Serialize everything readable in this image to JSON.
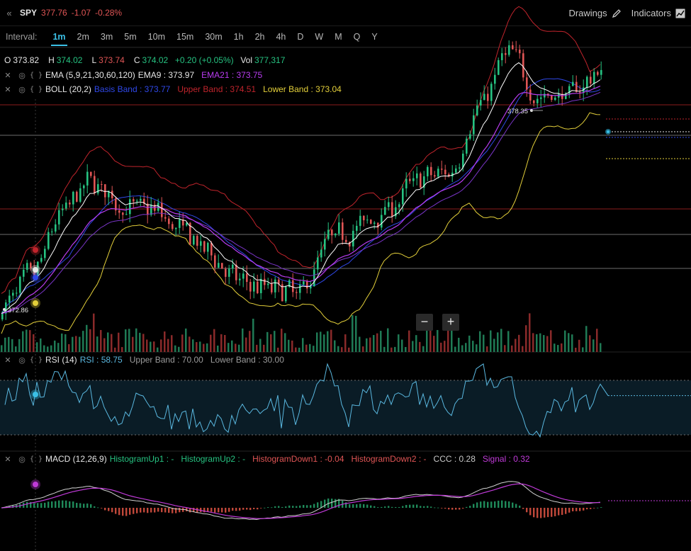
{
  "header": {
    "symbol": "SPY",
    "price": "377.76",
    "change": "-1.07",
    "change_pct": "-0.28%",
    "drawings_label": "Drawings",
    "indicators_label": "Indicators"
  },
  "intervals": {
    "label": "Interval:",
    "items": [
      "1m",
      "2m",
      "3m",
      "5m",
      "10m",
      "15m",
      "30m",
      "1h",
      "2h",
      "4h",
      "D",
      "W",
      "M",
      "Q",
      "Y"
    ],
    "active": "1m"
  },
  "ohlc": {
    "o_label": "O",
    "o": "373.82",
    "h_label": "H",
    "h": "374.02",
    "l_label": "L",
    "l": "373.74",
    "c_label": "C",
    "c": "374.02",
    "change": "+0.20 (+0.05%)",
    "vol_label": "Vol",
    "vol": "377,317"
  },
  "indicators": {
    "ema": {
      "name": "EMA (5,9,21,30,60,120)",
      "v1": "EMA9 : 373.97",
      "v2": "EMA21 : 373.75"
    },
    "boll": {
      "name": "BOLL (20,2)",
      "basis": "Basis Band : 373.77",
      "upper": "Upper Band : 374.51",
      "lower": "Lower Band : 373.04"
    },
    "rsi": {
      "name": "RSI (14)",
      "value": "RSI : 58.75",
      "upper": "Upper Band : 70.00",
      "lower": "Lower Band : 30.00"
    },
    "macd": {
      "name": "MACD (12,26,9)",
      "h1": "HistogramUp1 : -",
      "h2": "HistogramUp2 : -",
      "h3": "HistogramDown1 : -0.04",
      "h4": "HistogramDown2 : -",
      "ccc": "CCC : 0.28",
      "signal": "Signal : 0.32"
    }
  },
  "zoom": {
    "minus": "−",
    "plus": "+"
  },
  "colors": {
    "up": "#26c281",
    "down": "#e05555",
    "accent": "#3bc0e6",
    "ema9": "#ffffff",
    "ema21": "#b93cf0",
    "basis": "#2f48e8",
    "upper": "#c0242c",
    "lower": "#e3cf3a",
    "rsi": "#5ab8e0",
    "macd": "#cfcfcf",
    "signal": "#c03ad8"
  },
  "chart_data": {
    "type": "candlestick",
    "price_high_label": "378.35",
    "price_low_label": "372.86",
    "ema9_trend": [
      372.95,
      373.55,
      374.9,
      375.55,
      375.0,
      374.95,
      374.5,
      374.0,
      373.4,
      373.3,
      373.2,
      374.35,
      374.6,
      375.0,
      375.6,
      375.7,
      377.1,
      378.25,
      377.3,
      377.35,
      377.8
    ],
    "rsi_value": 58.75,
    "rsi_upper": 70,
    "rsi_lower": 30,
    "macd_ccc": 0.28,
    "macd_signal": 0.32,
    "macd_hist_last": -0.04
  }
}
